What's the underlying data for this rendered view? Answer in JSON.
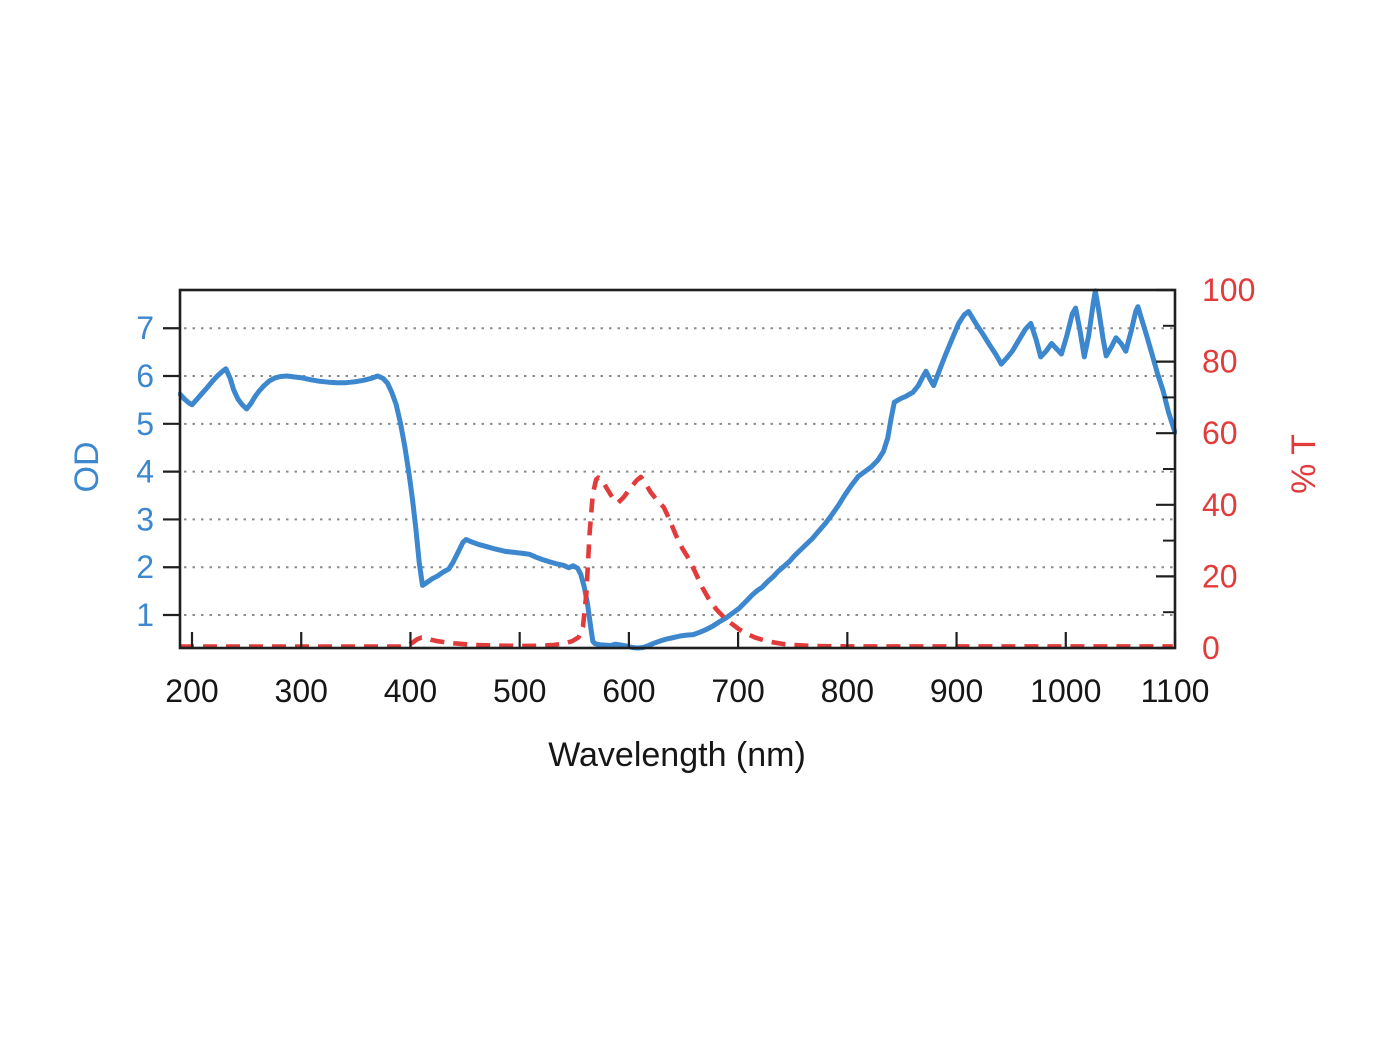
{
  "figure": {
    "background": "#ffffff"
  },
  "chart_data": {
    "type": "line",
    "title": "",
    "xlabel": "Wavelength (nm)",
    "ylabel_left": "OD",
    "ylabel_right": "% T",
    "x_axis": {
      "ticks": [
        200,
        300,
        400,
        500,
        600,
        700,
        800,
        900,
        1000,
        1100
      ],
      "range_nm": [
        189,
        1100
      ]
    },
    "left_axis": {
      "label": "OD",
      "ticks": [
        1,
        2,
        3,
        4,
        5,
        6,
        7
      ],
      "od_range": [
        0.31,
        7.8
      ],
      "color": "#3c87cd"
    },
    "right_axis": {
      "label": "% T",
      "ticks": [
        0,
        20,
        40,
        60,
        80,
        100
      ],
      "minor_ticks": [
        10,
        30,
        50,
        70,
        90
      ],
      "range": [
        0,
        100
      ],
      "color": "#e23b3b"
    },
    "grid": {
      "levels_od": [
        1,
        2,
        3,
        4,
        5,
        6,
        7
      ],
      "style": "dotted",
      "color": "#8c8c8c",
      "vertical": false
    },
    "frame_color": "#1f1f1f",
    "legend": "none",
    "series": [
      {
        "name": "OD",
        "axis": "left",
        "line_style": "solid",
        "color": "#3c87cd",
        "points": [
          [
            189,
            5.62
          ],
          [
            193,
            5.52
          ],
          [
            197,
            5.44
          ],
          [
            200,
            5.4
          ],
          [
            204,
            5.5
          ],
          [
            209,
            5.63
          ],
          [
            214,
            5.76
          ],
          [
            219,
            5.9
          ],
          [
            224,
            6.02
          ],
          [
            228,
            6.1
          ],
          [
            231,
            6.15
          ],
          [
            235,
            5.95
          ],
          [
            238,
            5.72
          ],
          [
            242,
            5.52
          ],
          [
            246,
            5.4
          ],
          [
            250,
            5.31
          ],
          [
            254,
            5.43
          ],
          [
            258,
            5.58
          ],
          [
            262,
            5.7
          ],
          [
            266,
            5.8
          ],
          [
            271,
            5.9
          ],
          [
            276,
            5.96
          ],
          [
            281,
            5.99
          ],
          [
            287,
            6.0
          ],
          [
            294,
            5.98
          ],
          [
            301,
            5.96
          ],
          [
            309,
            5.92
          ],
          [
            317,
            5.89
          ],
          [
            325,
            5.87
          ],
          [
            333,
            5.86
          ],
          [
            341,
            5.86
          ],
          [
            349,
            5.88
          ],
          [
            357,
            5.91
          ],
          [
            364,
            5.95
          ],
          [
            370,
            6.0
          ],
          [
            375,
            5.95
          ],
          [
            379,
            5.85
          ],
          [
            383,
            5.65
          ],
          [
            387,
            5.4
          ],
          [
            391,
            5.0
          ],
          [
            395,
            4.5
          ],
          [
            399,
            3.9
          ],
          [
            402,
            3.4
          ],
          [
            405,
            2.8
          ],
          [
            408,
            2.1
          ],
          [
            411,
            1.62
          ],
          [
            415,
            1.68
          ],
          [
            420,
            1.76
          ],
          [
            425,
            1.82
          ],
          [
            430,
            1.9
          ],
          [
            435,
            1.96
          ],
          [
            439,
            2.1
          ],
          [
            444,
            2.33
          ],
          [
            448,
            2.52
          ],
          [
            451,
            2.58
          ],
          [
            456,
            2.53
          ],
          [
            462,
            2.48
          ],
          [
            470,
            2.43
          ],
          [
            478,
            2.38
          ],
          [
            487,
            2.33
          ],
          [
            495,
            2.31
          ],
          [
            503,
            2.29
          ],
          [
            509,
            2.27
          ],
          [
            515,
            2.21
          ],
          [
            521,
            2.16
          ],
          [
            528,
            2.11
          ],
          [
            534,
            2.07
          ],
          [
            540,
            2.04
          ],
          [
            545,
            1.99
          ],
          [
            549,
            2.03
          ],
          [
            553,
            1.98
          ],
          [
            556,
            1.85
          ],
          [
            559,
            1.6
          ],
          [
            562,
            1.25
          ],
          [
            565,
            0.75
          ],
          [
            567,
            0.45
          ],
          [
            569,
            0.4
          ],
          [
            573,
            0.38
          ],
          [
            578,
            0.37
          ],
          [
            583,
            0.36
          ],
          [
            588,
            0.39
          ],
          [
            593,
            0.37
          ],
          [
            598,
            0.35
          ],
          [
            603,
            0.32
          ],
          [
            608,
            0.31
          ],
          [
            613,
            0.32
          ],
          [
            618,
            0.36
          ],
          [
            623,
            0.41
          ],
          [
            629,
            0.46
          ],
          [
            635,
            0.5
          ],
          [
            641,
            0.53
          ],
          [
            647,
            0.56
          ],
          [
            653,
            0.58
          ],
          [
            659,
            0.59
          ],
          [
            665,
            0.64
          ],
          [
            671,
            0.7
          ],
          [
            677,
            0.77
          ],
          [
            683,
            0.86
          ],
          [
            689,
            0.94
          ],
          [
            695,
            1.04
          ],
          [
            701,
            1.14
          ],
          [
            707,
            1.28
          ],
          [
            713,
            1.42
          ],
          [
            718,
            1.52
          ],
          [
            722,
            1.58
          ],
          [
            727,
            1.7
          ],
          [
            732,
            1.8
          ],
          [
            737,
            1.92
          ],
          [
            742,
            2.02
          ],
          [
            747,
            2.12
          ],
          [
            752,
            2.25
          ],
          [
            757,
            2.36
          ],
          [
            762,
            2.47
          ],
          [
            768,
            2.6
          ],
          [
            774,
            2.76
          ],
          [
            780,
            2.92
          ],
          [
            786,
            3.1
          ],
          [
            792,
            3.3
          ],
          [
            798,
            3.52
          ],
          [
            804,
            3.72
          ],
          [
            810,
            3.9
          ],
          [
            816,
            4.0
          ],
          [
            822,
            4.1
          ],
          [
            828,
            4.24
          ],
          [
            833,
            4.42
          ],
          [
            837,
            4.7
          ],
          [
            840,
            5.1
          ],
          [
            843,
            5.45
          ],
          [
            848,
            5.52
          ],
          [
            854,
            5.58
          ],
          [
            860,
            5.66
          ],
          [
            865,
            5.8
          ],
          [
            869,
            5.98
          ],
          [
            872,
            6.1
          ],
          [
            876,
            5.92
          ],
          [
            879,
            5.8
          ],
          [
            884,
            6.1
          ],
          [
            890,
            6.45
          ],
          [
            896,
            6.78
          ],
          [
            902,
            7.1
          ],
          [
            907,
            7.28
          ],
          [
            911,
            7.35
          ],
          [
            915,
            7.2
          ],
          [
            919,
            7.05
          ],
          [
            924,
            6.88
          ],
          [
            930,
            6.66
          ],
          [
            936,
            6.45
          ],
          [
            941,
            6.25
          ],
          [
            946,
            6.38
          ],
          [
            951,
            6.52
          ],
          [
            957,
            6.75
          ],
          [
            963,
            6.98
          ],
          [
            968,
            7.1
          ],
          [
            973,
            6.75
          ],
          [
            977,
            6.4
          ],
          [
            982,
            6.52
          ],
          [
            987,
            6.68
          ],
          [
            992,
            6.56
          ],
          [
            996,
            6.46
          ],
          [
            1001,
            6.85
          ],
          [
            1006,
            7.3
          ],
          [
            1009,
            7.42
          ],
          [
            1013,
            6.95
          ],
          [
            1017,
            6.4
          ],
          [
            1021,
            6.85
          ],
          [
            1025,
            7.5
          ],
          [
            1027,
            7.78
          ],
          [
            1030,
            7.4
          ],
          [
            1034,
            6.8
          ],
          [
            1037,
            6.42
          ],
          [
            1042,
            6.62
          ],
          [
            1046,
            6.8
          ],
          [
            1051,
            6.67
          ],
          [
            1055,
            6.52
          ],
          [
            1060,
            6.95
          ],
          [
            1064,
            7.35
          ],
          [
            1066,
            7.45
          ],
          [
            1070,
            7.15
          ],
          [
            1074,
            6.85
          ],
          [
            1079,
            6.45
          ],
          [
            1084,
            6.05
          ],
          [
            1089,
            5.7
          ],
          [
            1094,
            5.25
          ],
          [
            1100,
            4.82
          ]
        ]
      },
      {
        "name": "% T",
        "axis": "right",
        "line_style": "dashed",
        "color": "#e23b3b",
        "points": [
          [
            189,
            0.4
          ],
          [
            220,
            0.4
          ],
          [
            260,
            0.4
          ],
          [
            300,
            0.4
          ],
          [
            340,
            0.4
          ],
          [
            370,
            0.4
          ],
          [
            390,
            0.45
          ],
          [
            397,
            0.7
          ],
          [
            402,
            1.5
          ],
          [
            406,
            2.4
          ],
          [
            410,
            2.9
          ],
          [
            414,
            2.8
          ],
          [
            419,
            2.3
          ],
          [
            425,
            1.9
          ],
          [
            432,
            1.6
          ],
          [
            440,
            1.3
          ],
          [
            450,
            1.05
          ],
          [
            462,
            0.85
          ],
          [
            475,
            0.7
          ],
          [
            490,
            0.62
          ],
          [
            505,
            0.58
          ],
          [
            518,
            0.62
          ],
          [
            530,
            0.8
          ],
          [
            540,
            1.2
          ],
          [
            548,
            1.9
          ],
          [
            554,
            3.0
          ],
          [
            558,
            6.0
          ],
          [
            561,
            15.0
          ],
          [
            564,
            32.0
          ],
          [
            567,
            43.0
          ],
          [
            570,
            47.0
          ],
          [
            572,
            47.6
          ],
          [
            576,
            46.5
          ],
          [
            581,
            44.0
          ],
          [
            586,
            41.5
          ],
          [
            590,
            40.6
          ],
          [
            595,
            42.0
          ],
          [
            601,
            44.5
          ],
          [
            607,
            46.8
          ],
          [
            611,
            47.8
          ],
          [
            615,
            46.0
          ],
          [
            620,
            43.5
          ],
          [
            626,
            41.2
          ],
          [
            632,
            39.3
          ],
          [
            637,
            36.0
          ],
          [
            643,
            31.5
          ],
          [
            649,
            27.8
          ],
          [
            655,
            24.8
          ],
          [
            661,
            21.0
          ],
          [
            667,
            17.0
          ],
          [
            673,
            13.8
          ],
          [
            680,
            10.8
          ],
          [
            687,
            8.6
          ],
          [
            694,
            6.8
          ],
          [
            701,
            5.2
          ],
          [
            708,
            4.0
          ],
          [
            715,
            3.0
          ],
          [
            723,
            2.2
          ],
          [
            732,
            1.6
          ],
          [
            742,
            1.1
          ],
          [
            753,
            0.8
          ],
          [
            765,
            0.6
          ],
          [
            780,
            0.5
          ],
          [
            800,
            0.45
          ],
          [
            850,
            0.45
          ],
          [
            900,
            0.45
          ],
          [
            950,
            0.45
          ],
          [
            1000,
            0.45
          ],
          [
            1050,
            0.45
          ],
          [
            1098,
            0.45
          ]
        ]
      }
    ]
  }
}
